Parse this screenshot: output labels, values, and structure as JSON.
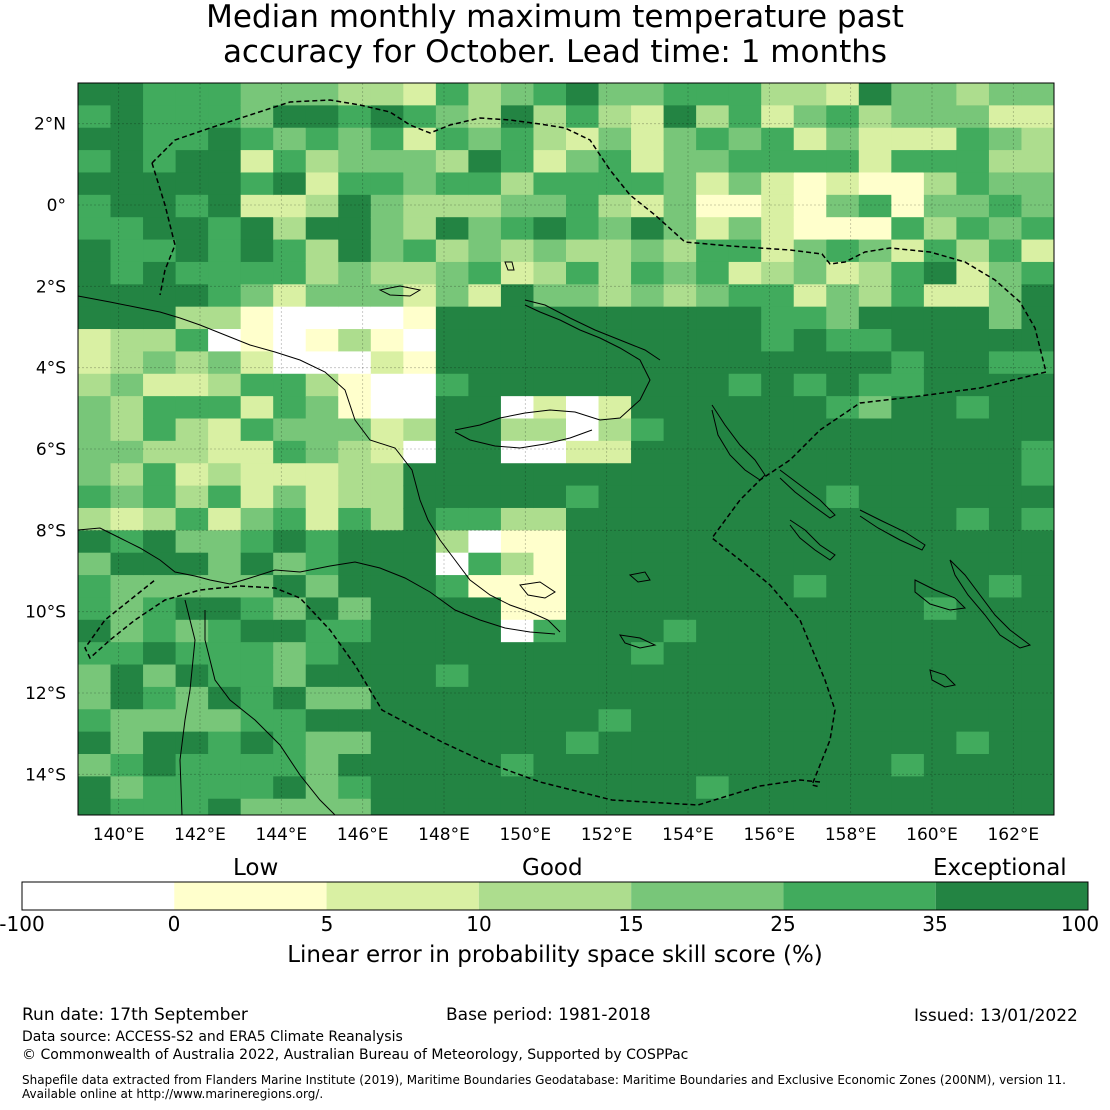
{
  "title_line1": "Median monthly maximum temperature past",
  "title_line2": "accuracy for October. Lead time: 1 months",
  "map": {
    "lon_labels": [
      "140°E",
      "142°E",
      "144°E",
      "146°E",
      "148°E",
      "150°E",
      "152°E",
      "154°E",
      "156°E",
      "158°E",
      "160°E",
      "162°E"
    ],
    "lat_labels": [
      "2°N",
      "0°",
      "2°S",
      "4°S",
      "6°S",
      "8°S",
      "10°S",
      "12°S",
      "14°S"
    ],
    "lon_range": [
      139,
      163
    ],
    "lat_range": [
      -15,
      3
    ],
    "cell_lon_deg": 0.8,
    "cell_lat_deg": 0.55,
    "default_class": 6
  },
  "colorbar": {
    "category_labels": [
      "Low",
      "Good",
      "Exceptional"
    ],
    "tick_labels": [
      "-100",
      "0",
      "5",
      "10",
      "15",
      "25",
      "35",
      "100"
    ],
    "colors": [
      "#ffffff",
      "#ffffcc",
      "#d9f0a3",
      "#addd8e",
      "#78c679",
      "#41ab5d",
      "#238443"
    ],
    "axis_label": "Linear error in probability space skill score (%)"
  },
  "footer": {
    "run_date": "Run date: 17th September",
    "base_period": "Base period: 1981-2018",
    "issued": "Issued: 13/01/2022",
    "data_source": "Data source: ACCESS-S2 and ERA5 Climate Reanalysis",
    "copyright": "© Commonwealth of Australia 2022, Australian Bureau of Meteorology, Supported by COSPPac",
    "shapefile_line1": "Shapefile data extracted from Flanders Marine Institute (2019), Maritime Boundaries Geodatabase: Maritime Boundaries and Exclusive Economic Zones (200NM), version 11.",
    "shapefile_line2": "Available online at http://www.marineregions.org/."
  }
}
